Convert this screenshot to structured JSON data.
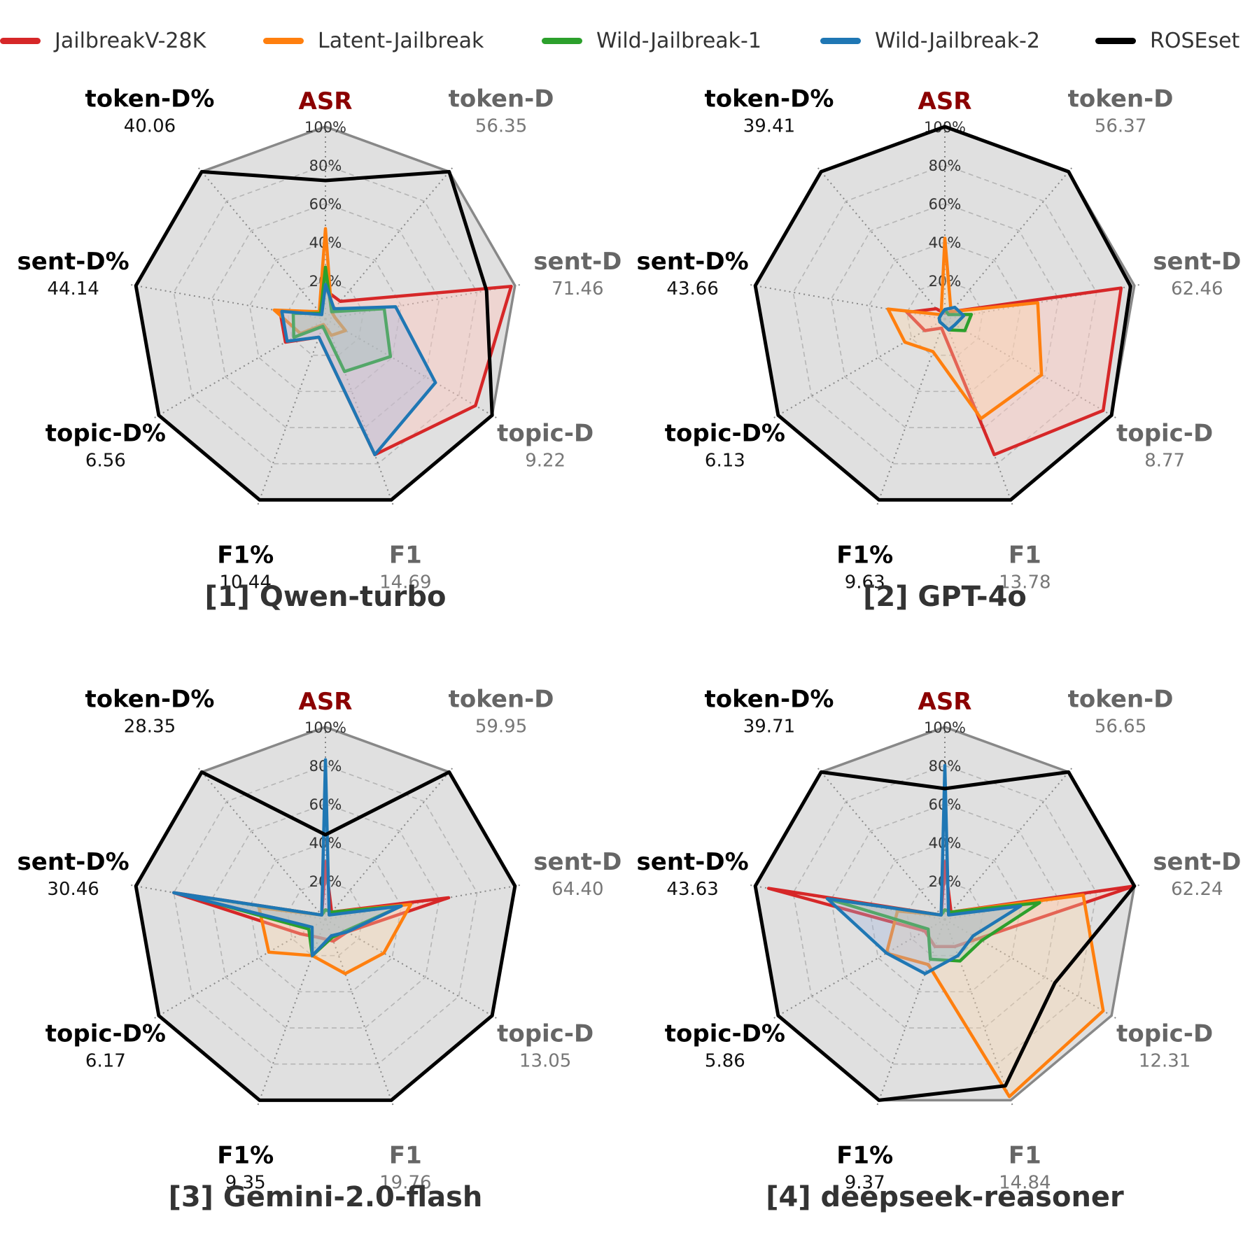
{
  "legend": {
    "items": [
      {
        "label": "JailbreakV-28K",
        "color": "#d62728"
      },
      {
        "label": "Latent-Jailbreak",
        "color": "#ff7f0e"
      },
      {
        "label": "Wild-Jailbreak-1",
        "color": "#2ca02c"
      },
      {
        "label": "Wild-Jailbreak-2",
        "color": "#1f77b4"
      },
      {
        "label": "ROSEset",
        "color": "#000000"
      }
    ]
  },
  "chart_data": [
    {
      "type": "radar",
      "title": "[1] Qwen-turbo",
      "axes": [
        "ASR",
        "token-D",
        "sent-D",
        "topic-D",
        "F1",
        "F1%",
        "topic-D%",
        "sent-D%",
        "token-D%"
      ],
      "axis_values": [
        "",
        "56.35",
        "71.46",
        "9.22",
        "14.69",
        "10.44",
        "6.56",
        "44.14",
        "40.06"
      ],
      "rlabels": [
        "20%",
        "40%",
        "60%",
        "80%",
        "100%"
      ],
      "ylim": [
        0,
        100
      ],
      "series": [
        {
          "name": "JailbreakV-28K",
          "values": [
            15,
            12,
            98,
            90,
            75,
            10,
            24,
            24,
            5
          ]
        },
        {
          "name": "Latent-Jailbreak",
          "values": [
            47,
            5,
            5,
            12,
            9,
            3,
            15,
            27,
            5
          ]
        },
        {
          "name": "Wild-Jailbreak-1",
          "values": [
            27,
            5,
            31,
            39,
            29,
            4,
            19,
            17,
            4
          ]
        },
        {
          "name": "Wild-Jailbreak-2",
          "values": [
            18,
            7,
            37,
            66,
            75,
            10,
            23,
            23,
            3
          ]
        },
        {
          "name": "ROSEset",
          "values": [
            72,
            100,
            85,
            100,
            100,
            100,
            100,
            100,
            100
          ]
        }
      ]
    },
    {
      "type": "radar",
      "title": "[2] GPT-4o",
      "axes": [
        "ASR",
        "token-D",
        "sent-D",
        "topic-D",
        "F1",
        "F1%",
        "topic-D%",
        "sent-D%",
        "token-D%"
      ],
      "axis_values": [
        "",
        "56.37",
        "62.46",
        "8.77",
        "13.78",
        "9.63",
        "6.13",
        "43.66",
        "39.41"
      ],
      "rlabels": [
        "20%",
        "40%",
        "60%",
        "80%",
        "100%"
      ],
      "ylim": [
        0,
        100
      ],
      "series": [
        {
          "name": "JailbreakV-28K",
          "values": [
            3,
            5,
            93,
            95,
            75,
            5,
            12,
            20,
            7
          ]
        },
        {
          "name": "Latent-Jailbreak",
          "values": [
            42,
            5,
            49,
            58,
            55,
            18,
            24,
            30,
            3
          ]
        },
        {
          "name": "Wild-Jailbreak-1",
          "values": [
            5,
            3,
            14,
            12,
            6,
            3,
            3,
            3,
            3
          ]
        },
        {
          "name": "Wild-Jailbreak-2",
          "values": [
            5,
            8,
            10,
            6,
            6,
            3,
            3,
            3,
            3
          ]
        },
        {
          "name": "ROSEset",
          "values": [
            100,
            100,
            98,
            100,
            100,
            100,
            100,
            100,
            100
          ]
        }
      ]
    },
    {
      "type": "radar",
      "title": "[3] Gemini-2.0-flash",
      "axes": [
        "ASR",
        "token-D",
        "sent-D",
        "topic-D",
        "F1",
        "F1%",
        "topic-D%",
        "sent-D%",
        "token-D%"
      ],
      "axis_values": [
        "",
        "59.95",
        "64.40",
        "13.05",
        "19.76",
        "9.35",
        "6.17",
        "30.46",
        "28.35"
      ],
      "rlabels": [
        "20%",
        "40%",
        "60%",
        "80%",
        "100%"
      ],
      "ylim": [
        0,
        100
      ],
      "series": [
        {
          "name": "JailbreakV-28K",
          "values": [
            30,
            5,
            65,
            13,
            12,
            10,
            15,
            80,
            3
          ]
        },
        {
          "name": "Latent-Jailbreak",
          "values": [
            5,
            5,
            45,
            35,
            30,
            20,
            34,
            35,
            3
          ]
        },
        {
          "name": "Wild-Jailbreak-1",
          "values": [
            5,
            5,
            40,
            12,
            10,
            20,
            10,
            75,
            3
          ]
        },
        {
          "name": "Wild-Jailbreak-2",
          "values": [
            83,
            3,
            40,
            13,
            9,
            20,
            8,
            80,
            3
          ]
        },
        {
          "name": "ROSEset",
          "values": [
            44,
            100,
            100,
            100,
            100,
            100,
            100,
            100,
            100
          ]
        }
      ]
    },
    {
      "type": "radar",
      "title": "[4] deepseek-reasoner",
      "axes": [
        "ASR",
        "token-D",
        "sent-D",
        "topic-D",
        "F1",
        "F1%",
        "topic-D%",
        "sent-D%",
        "token-D%"
      ],
      "axis_values": [
        "",
        "56.65",
        "62.24",
        "12.31",
        "14.84",
        "9.37",
        "5.86",
        "43.63",
        "39.71"
      ],
      "rlabels": [
        "20%",
        "40%",
        "60%",
        "80%",
        "100%"
      ],
      "ylim": [
        0,
        100
      ],
      "series": [
        {
          "name": "JailbreakV-28K",
          "values": [
            30,
            5,
            100,
            20,
            15,
            15,
            12,
            93,
            3
          ]
        },
        {
          "name": "Latent-Jailbreak",
          "values": [
            5,
            5,
            73,
            95,
            98,
            25,
            35,
            25,
            3
          ]
        },
        {
          "name": "Wild-Jailbreak-1",
          "values": [
            5,
            5,
            50,
            22,
            23,
            22,
            10,
            62,
            3
          ]
        },
        {
          "name": "Wild-Jailbreak-2",
          "values": [
            80,
            3,
            40,
            17,
            20,
            30,
            35,
            62,
            3
          ]
        },
        {
          "name": "ROSEset",
          "values": [
            68,
            100,
            100,
            66,
            92,
            100,
            100,
            100,
            100
          ]
        }
      ]
    }
  ]
}
